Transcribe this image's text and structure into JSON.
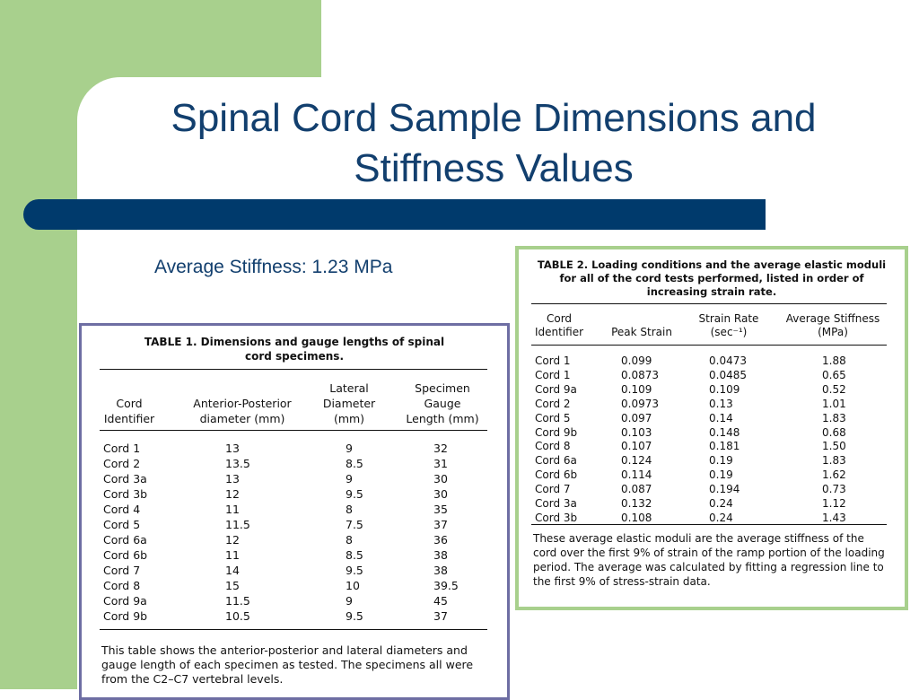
{
  "slide": {
    "title_line1": "Spinal Cord Sample Dimensions and",
    "title_line2": "Stiffness Values",
    "average_stiffness": "Average Stiffness: 1.23 MPa"
  },
  "table1": {
    "caption_line1": "TABLE 1.  Dimensions and gauge lengths of spinal",
    "caption_line2": "cord specimens.",
    "headers": {
      "cord": [
        "Cord",
        "Identifier"
      ],
      "ap": [
        "Anterior-Posterior",
        "diameter (mm)"
      ],
      "lat": [
        "Lateral",
        "Diameter",
        "(mm)"
      ],
      "gauge": [
        "Specimen",
        "Gauge",
        "Length (mm)"
      ]
    },
    "rows": [
      [
        "Cord 1",
        "13",
        "9",
        "32"
      ],
      [
        "Cord 2",
        "13.5",
        "8.5",
        "31"
      ],
      [
        "Cord 3a",
        "13",
        "9",
        "30"
      ],
      [
        "Cord 3b",
        "12",
        "9.5",
        "30"
      ],
      [
        "Cord 4",
        "11",
        "8",
        "35"
      ],
      [
        "Cord 5",
        "11.5",
        "7.5",
        "37"
      ],
      [
        "Cord 6a",
        "12",
        "8",
        "36"
      ],
      [
        "Cord 6b",
        "11",
        "8.5",
        "38"
      ],
      [
        "Cord 7",
        "14",
        "9.5",
        "38"
      ],
      [
        "Cord 8",
        "15",
        "10",
        "39.5"
      ],
      [
        "Cord 9a",
        "11.5",
        "9",
        "45"
      ],
      [
        "Cord 9b",
        "10.5",
        "9.5",
        "37"
      ]
    ],
    "note": "This table shows the anterior-posterior and lateral diameters and gauge length of each specimen as tested. The specimens all were from the C2–C7 vertebral levels."
  },
  "table2": {
    "caption_line1": "TABLE 2.  Loading conditions and the average elastic moduli",
    "caption_line2": "for all of the cord tests performed, listed in order of",
    "caption_line3": "increasing strain rate.",
    "headers": {
      "cord": [
        "Cord",
        "Identifier"
      ],
      "peak": [
        "",
        "Peak Strain"
      ],
      "rate": [
        "Strain Rate",
        "(sec⁻¹)"
      ],
      "stiff": [
        "Average Stiffness",
        "(MPa)"
      ]
    },
    "rows": [
      [
        "Cord 1",
        "0.099",
        "0.0473",
        "1.88"
      ],
      [
        "Cord 1",
        "0.0873",
        "0.0485",
        "0.65"
      ],
      [
        "Cord 9a",
        "0.109",
        "0.109",
        "0.52"
      ],
      [
        "Cord 2",
        "0.0973",
        "0.13",
        "1.01"
      ],
      [
        "Cord 5",
        "0.097",
        "0.14",
        "1.83"
      ],
      [
        "Cord 9b",
        "0.103",
        "0.148",
        "0.68"
      ],
      [
        "Cord 8",
        "0.107",
        "0.181",
        "1.50"
      ],
      [
        "Cord 6a",
        "0.124",
        "0.19",
        "1.83"
      ],
      [
        "Cord 6b",
        "0.114",
        "0.19",
        "1.62"
      ],
      [
        "Cord 7",
        "0.087",
        "0.194",
        "0.73"
      ],
      [
        "Cord 3a",
        "0.132",
        "0.24",
        "1.12"
      ],
      [
        "Cord 3b",
        "0.108",
        "0.24",
        "1.43"
      ]
    ],
    "note": "These average elastic moduli are the average stiffness of the cord over the first 9% of strain of the ramp portion of the loading period. The average was calculated by fitting a regression line to the first 9% of stress-strain data."
  },
  "colors": {
    "green": "#a8d08d",
    "navy": "#003a6c",
    "title": "#123f6e",
    "table1_border": "#6e6ea3"
  }
}
